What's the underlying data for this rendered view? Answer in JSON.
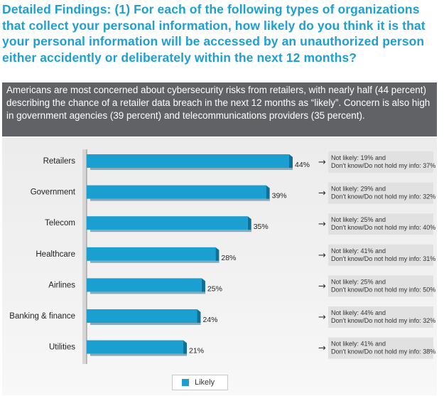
{
  "heading": "Detailed Findings: (1) For each of the following types of organizations that collect your personal information, how likely do you think it is that your personal information will be accessed by an unauthorized person either accidently or deliberately within the next 12 months?",
  "summary": "Americans are most concerned about cybersecurity risks from retailers, with nearly half (44 percent) describing the chance of a retailer data breach in the next 12 months as “likely”. Concern is also high in government agencies (39 percent) and telecommunications providers (35 percent).",
  "colors": {
    "heading": "#1e9fd2",
    "bar": "#1a9fd0",
    "bar_dark": "#0f6f97",
    "summary_bg": "#606266"
  },
  "chart_data": {
    "type": "bar",
    "orientation": "horizontal",
    "categories": [
      "Retailers",
      "Government",
      "Telecom",
      "Healthcare",
      "Airlines",
      "Banking & finance",
      "Utilities"
    ],
    "series": [
      {
        "name": "Likely",
        "values": [
          44,
          39,
          35,
          28,
          25,
          24,
          21
        ]
      }
    ],
    "value_labels": [
      "44%",
      "39%",
      "35%",
      "28%",
      "25%",
      "24%",
      "21%"
    ],
    "notes": [
      [
        "Not likely: 19% and",
        "Don't know/Do not hold my info: 37%"
      ],
      [
        "Not likely: 29% and",
        "Don't know/Do not hold my info: 32%"
      ],
      [
        "Not likely: 25% and",
        "Don't know/Do not hold my info: 40%"
      ],
      [
        "Not likely: 41% and",
        "Don't know/Do not hold my info: 31%"
      ],
      [
        "Not likely: 25% and",
        "Don't know/Do not hold my info: 50%"
      ],
      [
        "Not likely: 44% and",
        "Don't know/Do not hold my info: 32%"
      ],
      [
        "Not likely: 41% and",
        "Don't know/Do not hold my info: 38%"
      ]
    ],
    "arrow_symbol": "→",
    "xlim": [
      0,
      44
    ],
    "grid": false,
    "legend": "bottom"
  }
}
